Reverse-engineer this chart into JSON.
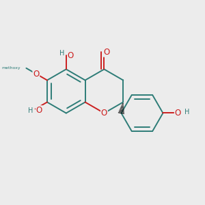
{
  "bg": "#ececec",
  "bc": "#2d7c77",
  "oc": "#cc1f1f",
  "hc": "#2d7c77",
  "lw": 1.4,
  "L": 0.155,
  "figsize": [
    3.0,
    3.0
  ],
  "dpi": 100,
  "xlim": [
    -0.55,
    0.78
  ],
  "ylim": [
    -0.68,
    0.6
  ]
}
